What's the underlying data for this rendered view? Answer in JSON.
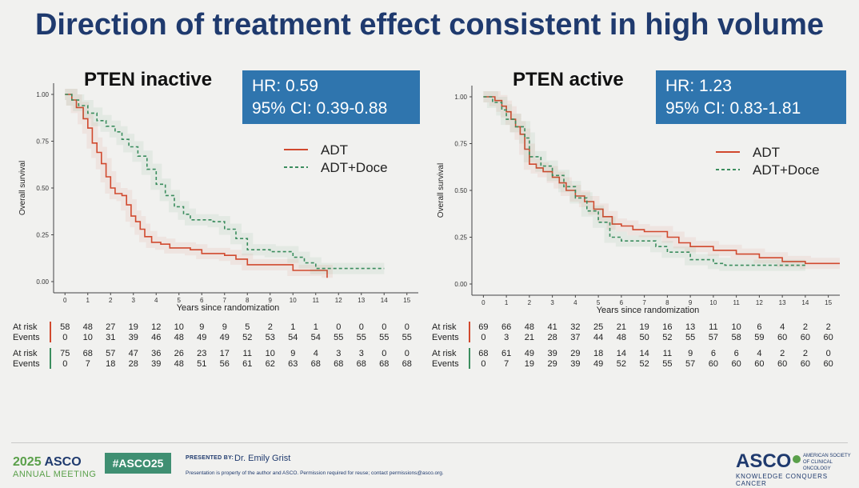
{
  "slide_title": "Direction of treatment effect consistent in high volume",
  "panels": [
    {
      "title": "PTEN inactive",
      "hr_line": "HR: 0.59",
      "ci_line": "95% CI: 0.39-0.88"
    },
    {
      "title": "PTEN active",
      "hr_line": "HR: 1.23",
      "ci_line": "95% CI: 0.83-1.81"
    }
  ],
  "chart_data": [
    {
      "type": "line",
      "title": "PTEN inactive",
      "xlabel": "Years since randomization",
      "ylabel": "Overall survival",
      "xlim": [
        -0.5,
        15.5
      ],
      "ylim": [
        0,
        1.0
      ],
      "x_ticks": [
        "0",
        "1",
        "2",
        "3",
        "4",
        "5",
        "6",
        "7",
        "8",
        "9",
        "10",
        "11",
        "12",
        "13",
        "14",
        "15"
      ],
      "y_ticks": [
        "0.00",
        "0.25",
        "0.50",
        "0.75",
        "1.00"
      ],
      "legend_position": "top-right",
      "series": [
        {
          "name": "ADT",
          "color": "#d1492e",
          "dash": false,
          "points": [
            [
              0,
              1.0
            ],
            [
              0.3,
              0.97
            ],
            [
              0.5,
              0.93
            ],
            [
              0.8,
              0.87
            ],
            [
              1.0,
              0.82
            ],
            [
              1.2,
              0.74
            ],
            [
              1.4,
              0.69
            ],
            [
              1.6,
              0.63
            ],
            [
              1.8,
              0.56
            ],
            [
              2.0,
              0.5
            ],
            [
              2.2,
              0.47
            ],
            [
              2.5,
              0.46
            ],
            [
              2.7,
              0.41
            ],
            [
              2.9,
              0.35
            ],
            [
              3.1,
              0.32
            ],
            [
              3.3,
              0.28
            ],
            [
              3.5,
              0.24
            ],
            [
              3.8,
              0.21
            ],
            [
              4.2,
              0.2
            ],
            [
              4.6,
              0.18
            ],
            [
              5.0,
              0.18
            ],
            [
              5.5,
              0.17
            ],
            [
              6.0,
              0.15
            ],
            [
              7.0,
              0.14
            ],
            [
              7.5,
              0.12
            ],
            [
              8.0,
              0.09
            ],
            [
              9.0,
              0.09
            ],
            [
              10.0,
              0.06
            ],
            [
              11.5,
              0.06
            ],
            [
              11.5,
              0.02
            ]
          ]
        },
        {
          "name": "ADT+Doce",
          "color": "#3b8d5e",
          "dash": true,
          "points": [
            [
              0,
              1.0
            ],
            [
              0.3,
              0.97
            ],
            [
              0.6,
              0.94
            ],
            [
              1.0,
              0.9
            ],
            [
              1.4,
              0.86
            ],
            [
              1.8,
              0.83
            ],
            [
              2.2,
              0.8
            ],
            [
              2.5,
              0.76
            ],
            [
              2.8,
              0.72
            ],
            [
              3.2,
              0.67
            ],
            [
              3.6,
              0.6
            ],
            [
              4.0,
              0.52
            ],
            [
              4.4,
              0.46
            ],
            [
              4.8,
              0.4
            ],
            [
              5.2,
              0.36
            ],
            [
              5.5,
              0.33
            ],
            [
              6.0,
              0.33
            ],
            [
              6.5,
              0.32
            ],
            [
              7.0,
              0.28
            ],
            [
              7.5,
              0.23
            ],
            [
              8.0,
              0.17
            ],
            [
              9.0,
              0.16
            ],
            [
              10.0,
              0.13
            ],
            [
              10.5,
              0.1
            ],
            [
              11.0,
              0.07
            ],
            [
              12.0,
              0.07
            ],
            [
              14.0,
              0.07
            ]
          ]
        }
      ],
      "at_risk": {
        "ADT": {
          "at_risk": [
            58,
            48,
            27,
            19,
            12,
            10,
            9,
            9,
            5,
            2,
            1,
            1,
            0,
            0,
            0,
            0
          ],
          "events": [
            0,
            10,
            31,
            39,
            46,
            48,
            49,
            49,
            52,
            53,
            54,
            54,
            55,
            55,
            55,
            55
          ]
        },
        "ADT+Doce": {
          "at_risk": [
            75,
            68,
            57,
            47,
            36,
            26,
            23,
            17,
            11,
            10,
            9,
            4,
            3,
            3,
            0,
            0
          ],
          "events": [
            0,
            7,
            18,
            28,
            39,
            48,
            51,
            56,
            61,
            62,
            63,
            68,
            68,
            68,
            68,
            68
          ]
        }
      }
    },
    {
      "type": "line",
      "title": "PTEN active",
      "xlabel": "Years since randomization",
      "ylabel": "Overall survival",
      "xlim": [
        -0.5,
        15.5
      ],
      "ylim": [
        0,
        1.0
      ],
      "x_ticks": [
        "0",
        "1",
        "2",
        "3",
        "4",
        "5",
        "6",
        "7",
        "8",
        "9",
        "10",
        "11",
        "12",
        "13",
        "14",
        "15"
      ],
      "y_ticks": [
        "0.00",
        "0.25",
        "0.50",
        "0.75",
        "1.00"
      ],
      "legend_position": "right",
      "series": [
        {
          "name": "ADT",
          "color": "#d1492e",
          "dash": false,
          "points": [
            [
              0,
              1.0
            ],
            [
              0.5,
              0.98
            ],
            [
              0.8,
              0.95
            ],
            [
              1.0,
              0.92
            ],
            [
              1.2,
              0.88
            ],
            [
              1.4,
              0.84
            ],
            [
              1.6,
              0.8
            ],
            [
              1.8,
              0.72
            ],
            [
              2.0,
              0.64
            ],
            [
              2.3,
              0.62
            ],
            [
              2.6,
              0.6
            ],
            [
              3.0,
              0.57
            ],
            [
              3.3,
              0.54
            ],
            [
              3.6,
              0.5
            ],
            [
              4.0,
              0.47
            ],
            [
              4.4,
              0.44
            ],
            [
              4.8,
              0.4
            ],
            [
              5.2,
              0.36
            ],
            [
              5.6,
              0.32
            ],
            [
              6.0,
              0.31
            ],
            [
              6.5,
              0.29
            ],
            [
              7.0,
              0.28
            ],
            [
              8.0,
              0.25
            ],
            [
              8.5,
              0.22
            ],
            [
              9.0,
              0.2
            ],
            [
              10.0,
              0.18
            ],
            [
              11.0,
              0.16
            ],
            [
              12.0,
              0.14
            ],
            [
              13.0,
              0.12
            ],
            [
              14.0,
              0.11
            ],
            [
              15.5,
              0.11
            ]
          ]
        },
        {
          "name": "ADT+Doce",
          "color": "#3b8d5e",
          "dash": true,
          "points": [
            [
              0,
              1.0
            ],
            [
              0.4,
              0.97
            ],
            [
              0.8,
              0.93
            ],
            [
              1.0,
              0.88
            ],
            [
              1.4,
              0.84
            ],
            [
              1.8,
              0.78
            ],
            [
              2.0,
              0.68
            ],
            [
              2.5,
              0.63
            ],
            [
              3.0,
              0.58
            ],
            [
              3.5,
              0.52
            ],
            [
              4.0,
              0.46
            ],
            [
              4.5,
              0.39
            ],
            [
              5.0,
              0.33
            ],
            [
              5.5,
              0.25
            ],
            [
              6.0,
              0.23
            ],
            [
              7.0,
              0.23
            ],
            [
              7.5,
              0.2
            ],
            [
              8.0,
              0.17
            ],
            [
              9.0,
              0.13
            ],
            [
              10.0,
              0.11
            ],
            [
              10.5,
              0.1
            ],
            [
              12.0,
              0.1
            ],
            [
              14.0,
              0.1
            ]
          ]
        }
      ],
      "at_risk": {
        "ADT": {
          "at_risk": [
            69,
            66,
            48,
            41,
            32,
            25,
            21,
            19,
            16,
            13,
            11,
            10,
            6,
            4,
            2,
            2
          ],
          "events": [
            0,
            3,
            21,
            28,
            37,
            44,
            48,
            50,
            52,
            55,
            57,
            58,
            59,
            60,
            60,
            60
          ]
        },
        "ADT+Doce": {
          "at_risk": [
            68,
            61,
            49,
            39,
            29,
            18,
            14,
            14,
            11,
            9,
            6,
            6,
            4,
            2,
            2,
            0
          ],
          "events": [
            0,
            7,
            19,
            29,
            39,
            49,
            52,
            52,
            55,
            57,
            60,
            60,
            60,
            60,
            60,
            60
          ]
        }
      }
    }
  ],
  "risk_labels": {
    "at_risk": "At risk",
    "events": "Events"
  },
  "footer": {
    "year": "2025",
    "asco": "ASCO",
    "meeting": "ANNUAL MEETING",
    "hashtag": "#ASCO25",
    "presented_by": "PRESENTED BY:",
    "presenter": "Dr. Emily Grist",
    "disclaimer": "Presentation is property of the author and ASCO. Permission required for reuse; contact permissions@asco.org.",
    "logo": "ASCO",
    "org": "AMERICAN SOCIETY OF CLINICAL ONCOLOGY",
    "tagline": "KNOWLEDGE CONQUERS CANCER"
  },
  "colors": {
    "adt": "#d1492e",
    "doce": "#3b8d5e",
    "title": "#1f3a6e",
    "box": "#2f75ae"
  }
}
